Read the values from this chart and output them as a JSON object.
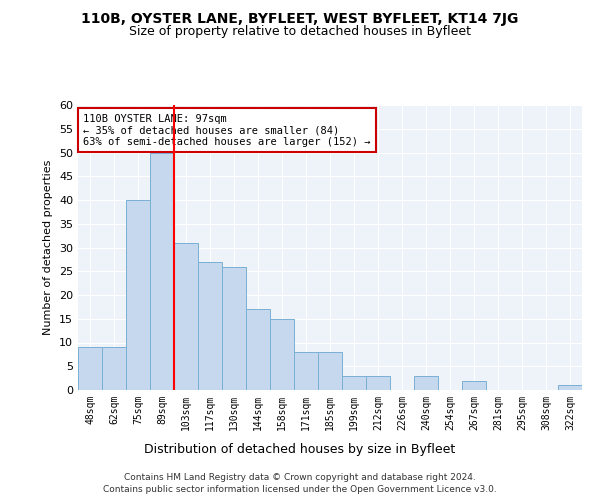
{
  "title1": "110B, OYSTER LANE, BYFLEET, WEST BYFLEET, KT14 7JG",
  "title2": "Size of property relative to detached houses in Byfleet",
  "xlabel": "Distribution of detached houses by size in Byfleet",
  "ylabel": "Number of detached properties",
  "categories": [
    "48sqm",
    "62sqm",
    "75sqm",
    "89sqm",
    "103sqm",
    "117sqm",
    "130sqm",
    "144sqm",
    "158sqm",
    "171sqm",
    "185sqm",
    "199sqm",
    "212sqm",
    "226sqm",
    "240sqm",
    "254sqm",
    "267sqm",
    "281sqm",
    "295sqm",
    "308sqm",
    "322sqm"
  ],
  "values": [
    9,
    9,
    40,
    50,
    31,
    27,
    26,
    17,
    15,
    8,
    8,
    3,
    3,
    0,
    3,
    0,
    2,
    0,
    0,
    0,
    1
  ],
  "bar_color": "#c5d8ed",
  "bar_edge_color": "#7aafd4",
  "property_line_x": 3.5,
  "annotation_text": "110B OYSTER LANE: 97sqm\n← 35% of detached houses are smaller (84)\n63% of semi-detached houses are larger (152) →",
  "annotation_box_color": "#ffffff",
  "annotation_box_edge": "#cc0000",
  "footer1": "Contains HM Land Registry data © Crown copyright and database right 2024.",
  "footer2": "Contains public sector information licensed under the Open Government Licence v3.0.",
  "ylim": [
    0,
    60
  ],
  "yticks": [
    0,
    5,
    10,
    15,
    20,
    25,
    30,
    35,
    40,
    45,
    50,
    55,
    60
  ],
  "plot_bg_color": "#eef3fa"
}
